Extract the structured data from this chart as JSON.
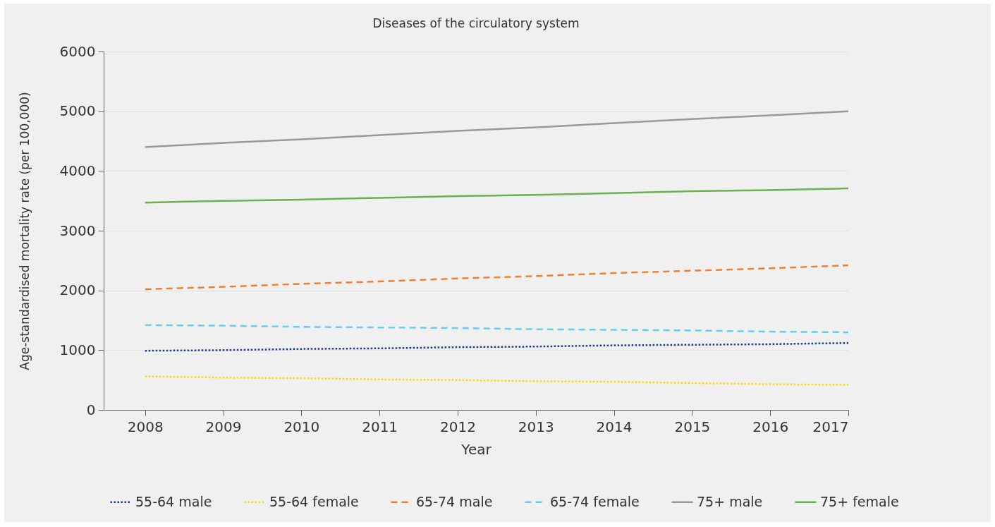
{
  "chart_data": {
    "type": "line",
    "title": "Diseases of the circulatory system",
    "xlabel": "Year",
    "ylabel": "Age-standardised mortality rate (per 100,000)",
    "x": [
      2008,
      2009,
      2010,
      2011,
      2012,
      2013,
      2014,
      2015,
      2016,
      2017
    ],
    "xlim": [
      2007.47,
      2017
    ],
    "xticks": [
      2008,
      2009,
      2010,
      2011,
      2012,
      2013,
      2014,
      2015,
      2016,
      2017
    ],
    "ylim": [
      0,
      6000
    ],
    "yticks": [
      0,
      1000,
      2000,
      3000,
      4000,
      5000,
      6000
    ],
    "grid": "y",
    "legend": "bottom",
    "marker": "none",
    "series": [
      {
        "name": "55-64 male",
        "color": "#1f3a93",
        "line_style": "dotted",
        "values": [
          990,
          1000,
          1020,
          1030,
          1050,
          1060,
          1080,
          1090,
          1100,
          1120
        ]
      },
      {
        "name": "55-64 female",
        "color": "#ffd700",
        "line_style": "dotted",
        "values": [
          560,
          540,
          530,
          510,
          500,
          480,
          470,
          450,
          430,
          420
        ]
      },
      {
        "name": "65-74 male",
        "color": "#f08030",
        "line_style": "dashed",
        "values": [
          2020,
          2060,
          2110,
          2150,
          2200,
          2240,
          2290,
          2330,
          2370,
          2420
        ]
      },
      {
        "name": "65-74 female",
        "color": "#66ccf5",
        "line_style": "dashed",
        "values": [
          1420,
          1410,
          1390,
          1380,
          1370,
          1350,
          1340,
          1330,
          1310,
          1300
        ]
      },
      {
        "name": "75+ male",
        "color": "#999999",
        "line_style": "solid",
        "values": [
          4400,
          4470,
          4530,
          4600,
          4670,
          4730,
          4800,
          4870,
          4930,
          5000
        ]
      },
      {
        "name": "75+ female",
        "color": "#6ab04c",
        "line_style": "solid",
        "values": [
          3470,
          3500,
          3520,
          3550,
          3580,
          3600,
          3630,
          3660,
          3680,
          3710
        ]
      }
    ]
  }
}
